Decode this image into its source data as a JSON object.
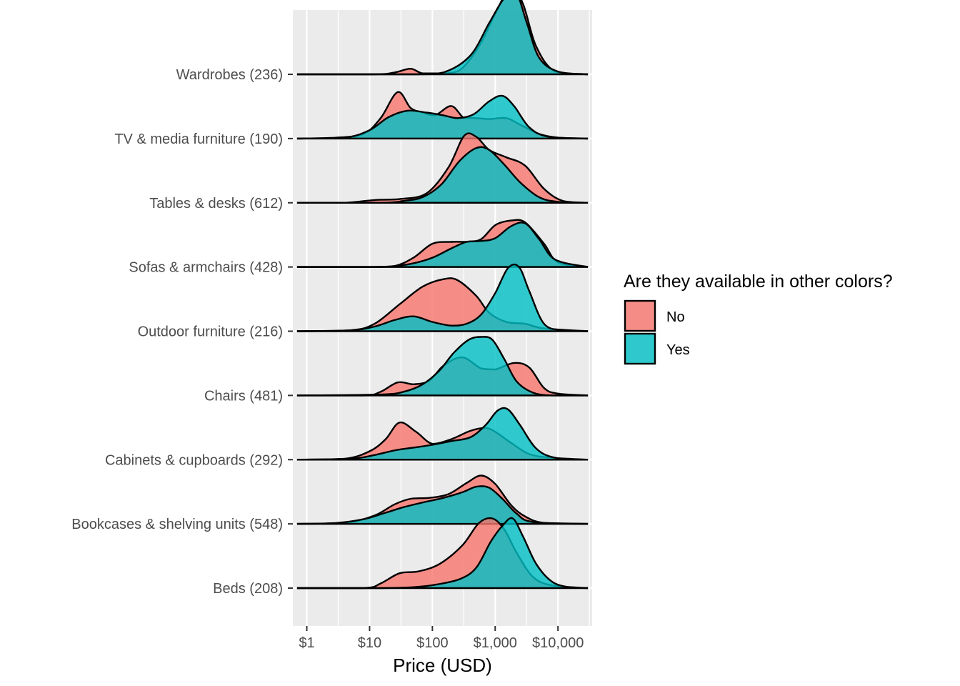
{
  "chart_data": {
    "type": "ridgeline",
    "xlabel": "Price (USD)",
    "x_scale": "log10",
    "xlim": [
      0.6,
      35000
    ],
    "x_ticks": [
      1,
      10,
      100,
      1000,
      10000
    ],
    "x_tick_labels": [
      "$1",
      "$10",
      "$100",
      "$1,000",
      "$10,000"
    ],
    "grid": true,
    "legend": {
      "title": "Are they available in other colors?",
      "position": "right",
      "entries": [
        {
          "label": "No",
          "color": "#F8766D"
        },
        {
          "label": "Yes",
          "color": "#00BFC4"
        }
      ]
    },
    "categories": [
      "Wardrobes (236)",
      "TV & media furniture (190)",
      "Tables & desks (612)",
      "Sofas & armchairs (428)",
      "Outdoor furniture (216)",
      "Chairs (481)",
      "Cabinets & cupboards (292)",
      "Bookcases & shelving units (548)",
      "Beds (208)"
    ],
    "series": [
      {
        "name": "No",
        "color": "#F8766D",
        "ridges": [
          [
            [
              0.7,
              0
            ],
            [
              12,
              0
            ],
            [
              25,
              0.02
            ],
            [
              45,
              0.06
            ],
            [
              70,
              0.01
            ],
            [
              150,
              0.01
            ],
            [
              280,
              0.05
            ],
            [
              550,
              0.3
            ],
            [
              1000,
              0.65
            ],
            [
              1800,
              0.95
            ],
            [
              2800,
              0.75
            ],
            [
              4500,
              0.3
            ],
            [
              9000,
              0.03
            ],
            [
              30000,
              0
            ]
          ],
          [
            [
              0.7,
              0
            ],
            [
              3,
              0.01
            ],
            [
              8,
              0.05
            ],
            [
              15,
              0.22
            ],
            [
              28,
              0.5
            ],
            [
              45,
              0.33
            ],
            [
              70,
              0.28
            ],
            [
              110,
              0.25
            ],
            [
              200,
              0.35
            ],
            [
              320,
              0.22
            ],
            [
              500,
              0.22
            ],
            [
              800,
              0.21
            ],
            [
              1500,
              0.22
            ],
            [
              2500,
              0.15
            ],
            [
              5000,
              0.05
            ],
            [
              10000,
              0.01
            ],
            [
              30000,
              0
            ]
          ],
          [
            [
              0.7,
              0
            ],
            [
              4,
              0
            ],
            [
              12,
              0.03
            ],
            [
              30,
              0.04
            ],
            [
              80,
              0.1
            ],
            [
              180,
              0.38
            ],
            [
              320,
              0.72
            ],
            [
              500,
              0.71
            ],
            [
              800,
              0.57
            ],
            [
              1500,
              0.49
            ],
            [
              3000,
              0.4
            ],
            [
              6000,
              0.15
            ],
            [
              12000,
              0.02
            ],
            [
              30000,
              0
            ]
          ],
          [
            [
              0.7,
              0
            ],
            [
              10,
              0
            ],
            [
              25,
              0.01
            ],
            [
              50,
              0.1
            ],
            [
              100,
              0.25
            ],
            [
              200,
              0.27
            ],
            [
              350,
              0.27
            ],
            [
              600,
              0.3
            ],
            [
              1000,
              0.45
            ],
            [
              1800,
              0.5
            ],
            [
              3000,
              0.48
            ],
            [
              6000,
              0.25
            ],
            [
              10000,
              0.05
            ],
            [
              30000,
              0
            ]
          ],
          [
            [
              0.7,
              0
            ],
            [
              5,
              0.01
            ],
            [
              12,
              0.08
            ],
            [
              30,
              0.29
            ],
            [
              70,
              0.48
            ],
            [
              150,
              0.56
            ],
            [
              250,
              0.55
            ],
            [
              500,
              0.38
            ],
            [
              800,
              0.2
            ],
            [
              1500,
              0.1
            ],
            [
              3000,
              0.08
            ],
            [
              6000,
              0.03
            ],
            [
              30000,
              0
            ]
          ],
          [
            [
              0.7,
              0
            ],
            [
              8,
              0
            ],
            [
              15,
              0.04
            ],
            [
              28,
              0.14
            ],
            [
              50,
              0.12
            ],
            [
              90,
              0.16
            ],
            [
              150,
              0.32
            ],
            [
              300,
              0.41
            ],
            [
              600,
              0.29
            ],
            [
              1000,
              0.28
            ],
            [
              2000,
              0.35
            ],
            [
              3500,
              0.3
            ],
            [
              6000,
              0.08
            ],
            [
              10000,
              0.02
            ],
            [
              30000,
              0
            ]
          ],
          [
            [
              0.7,
              0
            ],
            [
              4,
              0.01
            ],
            [
              10,
              0.09
            ],
            [
              18,
              0.22
            ],
            [
              30,
              0.4
            ],
            [
              55,
              0.3
            ],
            [
              100,
              0.17
            ],
            [
              200,
              0.22
            ],
            [
              400,
              0.31
            ],
            [
              700,
              0.34
            ],
            [
              1000,
              0.3
            ],
            [
              1800,
              0.18
            ],
            [
              3500,
              0.06
            ],
            [
              8000,
              0.02
            ],
            [
              30000,
              0
            ]
          ],
          [
            [
              0.7,
              0
            ],
            [
              4,
              0.01
            ],
            [
              12,
              0.09
            ],
            [
              25,
              0.21
            ],
            [
              45,
              0.27
            ],
            [
              90,
              0.28
            ],
            [
              180,
              0.32
            ],
            [
              350,
              0.44
            ],
            [
              600,
              0.52
            ],
            [
              1000,
              0.43
            ],
            [
              1800,
              0.2
            ],
            [
              3000,
              0.08
            ],
            [
              6000,
              0.01
            ],
            [
              30000,
              0
            ]
          ],
          [
            [
              0.7,
              0
            ],
            [
              8,
              0
            ],
            [
              15,
              0.05
            ],
            [
              30,
              0.16
            ],
            [
              60,
              0.18
            ],
            [
              130,
              0.26
            ],
            [
              300,
              0.46
            ],
            [
              550,
              0.7
            ],
            [
              900,
              0.75
            ],
            [
              1400,
              0.63
            ],
            [
              2200,
              0.38
            ],
            [
              4000,
              0.12
            ],
            [
              8000,
              0.03
            ],
            [
              30000,
              0
            ]
          ]
        ]
      },
      {
        "name": "Yes",
        "color": "#00BFC4",
        "ridges": [
          [
            [
              0.7,
              0
            ],
            [
              50,
              0
            ],
            [
              150,
              0.02
            ],
            [
              400,
              0.2
            ],
            [
              800,
              0.55
            ],
            [
              1400,
              0.82
            ],
            [
              2200,
              0.86
            ],
            [
              3200,
              0.55
            ],
            [
              5000,
              0.18
            ],
            [
              10000,
              0.03
            ],
            [
              30000,
              0
            ]
          ],
          [
            [
              0.7,
              0
            ],
            [
              4,
              0.01
            ],
            [
              10,
              0.09
            ],
            [
              20,
              0.23
            ],
            [
              40,
              0.3
            ],
            [
              80,
              0.28
            ],
            [
              150,
              0.25
            ],
            [
              250,
              0.22
            ],
            [
              450,
              0.26
            ],
            [
              800,
              0.4
            ],
            [
              1300,
              0.46
            ],
            [
              2000,
              0.35
            ],
            [
              3500,
              0.12
            ],
            [
              7000,
              0.02
            ],
            [
              30000,
              0
            ]
          ],
          [
            [
              0.7,
              0
            ],
            [
              15,
              0
            ],
            [
              35,
              0.02
            ],
            [
              70,
              0.06
            ],
            [
              140,
              0.2
            ],
            [
              270,
              0.45
            ],
            [
              500,
              0.59
            ],
            [
              800,
              0.57
            ],
            [
              1400,
              0.41
            ],
            [
              2500,
              0.22
            ],
            [
              5000,
              0.06
            ],
            [
              10000,
              0.01
            ],
            [
              30000,
              0
            ]
          ],
          [
            [
              0.7,
              0
            ],
            [
              10,
              0
            ],
            [
              25,
              0.01
            ],
            [
              50,
              0.04
            ],
            [
              100,
              0.1
            ],
            [
              200,
              0.2
            ],
            [
              350,
              0.27
            ],
            [
              600,
              0.28
            ],
            [
              1000,
              0.31
            ],
            [
              1800,
              0.44
            ],
            [
              3000,
              0.47
            ],
            [
              5000,
              0.3
            ],
            [
              9000,
              0.08
            ],
            [
              30000,
              0
            ]
          ],
          [
            [
              0.7,
              0
            ],
            [
              5,
              0.01
            ],
            [
              12,
              0.05
            ],
            [
              25,
              0.12
            ],
            [
              50,
              0.16
            ],
            [
              100,
              0.1
            ],
            [
              200,
              0.06
            ],
            [
              350,
              0.08
            ],
            [
              600,
              0.18
            ],
            [
              1000,
              0.41
            ],
            [
              1600,
              0.68
            ],
            [
              2400,
              0.69
            ],
            [
              3500,
              0.43
            ],
            [
              6000,
              0.08
            ],
            [
              12000,
              0.01
            ],
            [
              30000,
              0
            ]
          ],
          [
            [
              0.7,
              0
            ],
            [
              15,
              0.01
            ],
            [
              35,
              0.04
            ],
            [
              70,
              0.12
            ],
            [
              130,
              0.27
            ],
            [
              220,
              0.46
            ],
            [
              380,
              0.6
            ],
            [
              600,
              0.63
            ],
            [
              900,
              0.6
            ],
            [
              1400,
              0.39
            ],
            [
              2200,
              0.15
            ],
            [
              4000,
              0.03
            ],
            [
              8000,
              0
            ],
            [
              30000,
              0
            ]
          ],
          [
            [
              0.7,
              0
            ],
            [
              5,
              0.01
            ],
            [
              12,
              0.05
            ],
            [
              25,
              0.1
            ],
            [
              50,
              0.13
            ],
            [
              100,
              0.16
            ],
            [
              200,
              0.2
            ],
            [
              400,
              0.24
            ],
            [
              700,
              0.37
            ],
            [
              1100,
              0.53
            ],
            [
              1600,
              0.54
            ],
            [
              2500,
              0.37
            ],
            [
              4500,
              0.12
            ],
            [
              9000,
              0.02
            ],
            [
              30000,
              0
            ]
          ],
          [
            [
              0.7,
              0
            ],
            [
              3,
              0.01
            ],
            [
              8,
              0.05
            ],
            [
              18,
              0.12
            ],
            [
              35,
              0.18
            ],
            [
              70,
              0.23
            ],
            [
              150,
              0.28
            ],
            [
              300,
              0.34
            ],
            [
              500,
              0.4
            ],
            [
              800,
              0.39
            ],
            [
              1300,
              0.27
            ],
            [
              2200,
              0.11
            ],
            [
              4000,
              0.02
            ],
            [
              30000,
              0
            ]
          ],
          [
            [
              0.7,
              0
            ],
            [
              15,
              0
            ],
            [
              50,
              0.01
            ],
            [
              120,
              0.04
            ],
            [
              280,
              0.1
            ],
            [
              500,
              0.22
            ],
            [
              850,
              0.5
            ],
            [
              1300,
              0.67
            ],
            [
              1900,
              0.75
            ],
            [
              2800,
              0.55
            ],
            [
              4500,
              0.26
            ],
            [
              8000,
              0.07
            ],
            [
              15000,
              0.01
            ],
            [
              30000,
              0
            ]
          ]
        ]
      }
    ]
  }
}
